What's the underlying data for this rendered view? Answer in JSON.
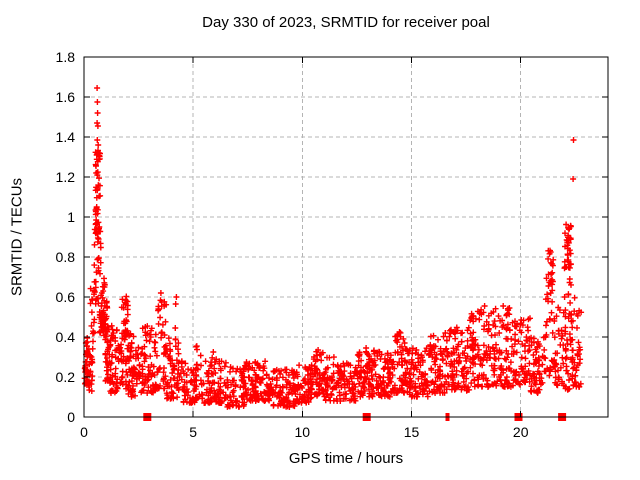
{
  "chart_data": {
    "type": "scatter",
    "title": "Day 330 of 2023, SRMTID for receiver poal",
    "xlabel": "GPS time / hours",
    "ylabel": "SRMTID / TECUs",
    "xlim": [
      0,
      24
    ],
    "ylim": [
      0,
      1.8
    ],
    "grid": true,
    "legend": "none",
    "marker": "plus",
    "marker_size_px": 7,
    "marker_stroke_px": 1.4,
    "square_size_px": 8,
    "seed": 1330,
    "xticks": [
      {
        "v": 0,
        "label": "0"
      },
      {
        "v": 5,
        "label": "5"
      },
      {
        "v": 10,
        "label": "10"
      },
      {
        "v": 15,
        "label": "15"
      },
      {
        "v": 20,
        "label": "20"
      }
    ],
    "yticks": [
      {
        "v": 0,
        "label": "0"
      },
      {
        "v": 0.2,
        "label": "0.2"
      },
      {
        "v": 0.4,
        "label": "0.4"
      },
      {
        "v": 0.6,
        "label": "0.6"
      },
      {
        "v": 0.8,
        "label": "0.8"
      },
      {
        "v": 1,
        "label": "1"
      },
      {
        "v": 1.2,
        "label": "1.2"
      },
      {
        "v": 1.4,
        "label": "1.4"
      },
      {
        "v": 1.6,
        "label": "1.6"
      },
      {
        "v": 1.8,
        "label": "1.8"
      }
    ],
    "point_cloud_segments": [
      {
        "x_start": 0.02,
        "x_end": 0.18,
        "count": 30,
        "y_min": 0.16,
        "y_max": 0.4,
        "low_bias": 1.2
      },
      {
        "x_start": 0.1,
        "x_end": 0.4,
        "count": 28,
        "y_min": 0.13,
        "y_max": 0.34,
        "low_bias": 1.3
      },
      {
        "x_start": 0.28,
        "x_end": 0.5,
        "count": 16,
        "y_min": 0.3,
        "y_max": 0.66,
        "low_bias": 1.0
      },
      {
        "x_start": 0.45,
        "x_end": 0.78,
        "count": 30,
        "y_min": 0.55,
        "y_max": 0.95,
        "low_bias": 1.0
      },
      {
        "x_start": 0.52,
        "x_end": 0.75,
        "count": 48,
        "y_min": 0.9,
        "y_max": 1.35,
        "low_bias": 1.0
      },
      {
        "x_start": 0.7,
        "x_end": 0.97,
        "count": 30,
        "y_min": 0.42,
        "y_max": 0.72,
        "low_bias": 1.2
      },
      {
        "x_start": 0.78,
        "x_end": 1.08,
        "count": 28,
        "y_min": 0.4,
        "y_max": 0.58,
        "low_bias": 1.2
      },
      {
        "x_start": 0.95,
        "x_end": 1.22,
        "count": 28,
        "y_min": 0.18,
        "y_max": 0.46,
        "low_bias": 1.3
      },
      {
        "x_start": 1.18,
        "x_end": 1.6,
        "count": 48,
        "y_min": 0.12,
        "y_max": 0.46,
        "low_bias": 1.4
      },
      {
        "x_start": 1.6,
        "x_end": 2.05,
        "count": 34,
        "y_min": 0.14,
        "y_max": 0.4,
        "low_bias": 1.3
      },
      {
        "x_start": 1.72,
        "x_end": 2.02,
        "count": 30,
        "y_min": 0.38,
        "y_max": 0.62,
        "low_bias": 1.0
      },
      {
        "x_start": 2.02,
        "x_end": 2.58,
        "count": 58,
        "y_min": 0.1,
        "y_max": 0.42,
        "low_bias": 1.5
      },
      {
        "x_start": 2.58,
        "x_end": 3.32,
        "count": 70,
        "y_min": 0.12,
        "y_max": 0.47,
        "low_bias": 1.5
      },
      {
        "x_start": 3.32,
        "x_end": 3.78,
        "count": 45,
        "y_min": 0.14,
        "y_max": 0.62,
        "low_bias": 1.4
      },
      {
        "x_start": 3.78,
        "x_end": 4.45,
        "count": 55,
        "y_min": 0.08,
        "y_max": 0.4,
        "low_bias": 1.5
      },
      {
        "x_start": 4.45,
        "x_end": 5.15,
        "count": 55,
        "y_min": 0.07,
        "y_max": 0.28,
        "low_bias": 1.4
      },
      {
        "x_start": 5.12,
        "x_end": 5.45,
        "count": 22,
        "y_min": 0.09,
        "y_max": 0.36,
        "low_bias": 1.3
      },
      {
        "x_start": 5.45,
        "x_end": 6.55,
        "count": 85,
        "y_min": 0.07,
        "y_max": 0.3,
        "low_bias": 1.5
      },
      {
        "x_start": 6.55,
        "x_end": 7.35,
        "count": 65,
        "y_min": 0.05,
        "y_max": 0.25,
        "low_bias": 1.4
      },
      {
        "x_start": 7.35,
        "x_end": 8.52,
        "count": 95,
        "y_min": 0.08,
        "y_max": 0.28,
        "low_bias": 1.4
      },
      {
        "x_start": 8.52,
        "x_end": 9.65,
        "count": 90,
        "y_min": 0.05,
        "y_max": 0.24,
        "low_bias": 1.4
      },
      {
        "x_start": 9.65,
        "x_end": 10.45,
        "count": 70,
        "y_min": 0.07,
        "y_max": 0.26,
        "low_bias": 1.4
      },
      {
        "x_start": 10.45,
        "x_end": 11.05,
        "count": 50,
        "y_min": 0.1,
        "y_max": 0.33,
        "low_bias": 1.3
      },
      {
        "x_start": 11.05,
        "x_end": 12.45,
        "count": 115,
        "y_min": 0.08,
        "y_max": 0.3,
        "low_bias": 1.4
      },
      {
        "x_start": 12.45,
        "x_end": 13.45,
        "count": 90,
        "y_min": 0.1,
        "y_max": 0.34,
        "low_bias": 1.4
      },
      {
        "x_start": 13.45,
        "x_end": 14.25,
        "count": 75,
        "y_min": 0.1,
        "y_max": 0.33,
        "low_bias": 1.4
      },
      {
        "x_start": 14.25,
        "x_end": 14.72,
        "count": 45,
        "y_min": 0.12,
        "y_max": 0.43,
        "low_bias": 1.3
      },
      {
        "x_start": 14.72,
        "x_end": 15.85,
        "count": 100,
        "y_min": 0.1,
        "y_max": 0.36,
        "low_bias": 1.4
      },
      {
        "x_start": 15.85,
        "x_end": 16.7,
        "count": 80,
        "y_min": 0.12,
        "y_max": 0.41,
        "low_bias": 1.4
      },
      {
        "x_start": 16.7,
        "x_end": 17.65,
        "count": 85,
        "y_min": 0.13,
        "y_max": 0.45,
        "low_bias": 1.4
      },
      {
        "x_start": 17.65,
        "x_end": 18.7,
        "count": 95,
        "y_min": 0.15,
        "y_max": 0.54,
        "low_bias": 1.4
      },
      {
        "x_start": 18.7,
        "x_end": 19.65,
        "count": 90,
        "y_min": 0.15,
        "y_max": 0.55,
        "low_bias": 1.4
      },
      {
        "x_start": 19.65,
        "x_end": 20.45,
        "count": 70,
        "y_min": 0.15,
        "y_max": 0.5,
        "low_bias": 1.4
      },
      {
        "x_start": 20.45,
        "x_end": 21.1,
        "count": 55,
        "y_min": 0.12,
        "y_max": 0.4,
        "low_bias": 1.4
      },
      {
        "x_start": 21.12,
        "x_end": 21.55,
        "count": 20,
        "y_min": 0.2,
        "y_max": 0.5,
        "low_bias": 1.2
      },
      {
        "x_start": 21.15,
        "x_end": 21.5,
        "count": 30,
        "y_min": 0.45,
        "y_max": 0.86,
        "low_bias": 0.9
      },
      {
        "x_start": 21.55,
        "x_end": 22.0,
        "count": 35,
        "y_min": 0.15,
        "y_max": 0.55,
        "low_bias": 1.3
      },
      {
        "x_start": 22.0,
        "x_end": 22.32,
        "count": 35,
        "y_min": 0.74,
        "y_max": 0.965,
        "low_bias": 1.0
      },
      {
        "x_start": 22.0,
        "x_end": 22.35,
        "count": 25,
        "y_min": 0.35,
        "y_max": 0.76,
        "low_bias": 1.1
      },
      {
        "x_start": 22.05,
        "x_end": 22.4,
        "count": 25,
        "y_min": 0.13,
        "y_max": 0.4,
        "low_bias": 1.2
      },
      {
        "x_start": 22.35,
        "x_end": 22.78,
        "count": 40,
        "y_min": 0.15,
        "y_max": 0.62,
        "low_bias": 1.5
      }
    ],
    "notable_points": [
      [
        0.6,
        1.645
      ],
      [
        0.615,
        1.575
      ],
      [
        0.625,
        1.52
      ],
      [
        0.598,
        1.47
      ],
      [
        0.635,
        1.455
      ],
      [
        0.61,
        1.385
      ],
      [
        0.652,
        1.36
      ],
      [
        0.6,
        1.315
      ],
      [
        0.58,
        1.05
      ],
      [
        0.56,
        0.985
      ],
      [
        3.52,
        0.62
      ],
      [
        3.56,
        0.575
      ],
      [
        4.2,
        0.565
      ],
      [
        4.23,
        0.6
      ],
      [
        4.18,
        0.445
      ],
      [
        5.92,
        0.325
      ],
      [
        10.72,
        0.335
      ],
      [
        12.92,
        0.345
      ],
      [
        14.45,
        0.425
      ],
      [
        16.55,
        0.42
      ],
      [
        18.35,
        0.555
      ],
      [
        19.2,
        0.555
      ],
      [
        22.42,
        1.385
      ],
      [
        22.4,
        1.19
      ]
    ],
    "zero_value_markers": [
      {
        "x": 2.9,
        "w": 8
      },
      {
        "x": 12.95,
        "w": 8
      },
      {
        "x": 16.65,
        "w": 4
      },
      {
        "x": 19.9,
        "w": 8
      },
      {
        "x": 21.9,
        "w": 8
      }
    ]
  },
  "colors": {
    "points": "#ff0000",
    "grid": "#b4b4b4",
    "axis": "#000000",
    "background": "#ffffff",
    "text": "#000000"
  }
}
